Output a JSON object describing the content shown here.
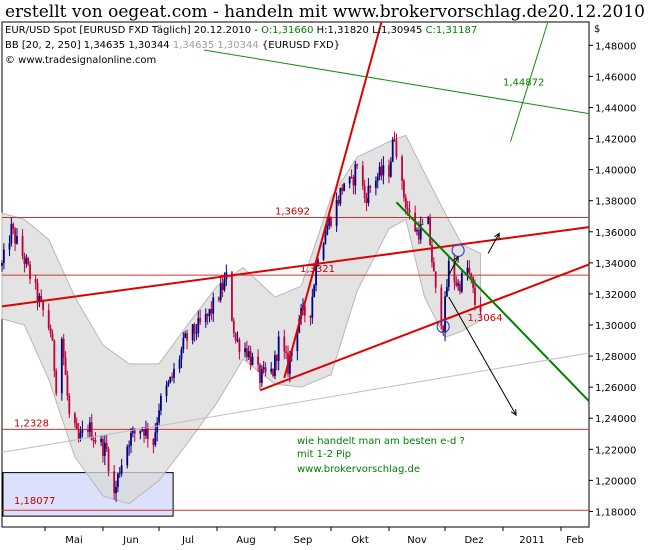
{
  "header": {
    "title": "erstellt von oegeat.com - handeln mit www.brokervorschlag.de",
    "date": "20.12.2010"
  },
  "legend": {
    "instrument": "EUR/USD Spot [EURUSD FXD  Täglich] 20.12.2010 -",
    "ohlc": [
      {
        "text": "O:1,31660",
        "color": "#008000"
      },
      {
        "text": " H:1,31820",
        "color": "#000000"
      },
      {
        "text": " L:1,30945",
        "color": "#000000"
      },
      {
        "text": " C:1,31187",
        "color": "#008000"
      }
    ],
    "bb_label": "BB [20, 2, 250]",
    "bb_values": [
      {
        "text": "1,34635",
        "color": "#000000"
      },
      {
        "text": " 1,30344",
        "color": "#000000"
      },
      {
        "text": " 1,34635",
        "color": "#a0a0a0"
      },
      {
        "text": " 1,30344",
        "color": "#a0a0a0"
      },
      {
        "text": " {EURUSD FXD}",
        "color": "#000000"
      }
    ],
    "copyright": "© www.tradesignalonline.com"
  },
  "colors": {
    "up": "#000080",
    "down": "#c0003c",
    "band": "#d9d9d9",
    "red_line": "#e00000",
    "green_line": "#008000",
    "thin_green": "#109010",
    "hline": "#d03030",
    "box": "#dde0fa"
  },
  "chart_data": {
    "type": "candlestick",
    "currency_label": "$",
    "y_ticks": [
      "1,18000",
      "1,20000",
      "1,22000",
      "1,24000",
      "1,26000",
      "1,28000",
      "1,30000",
      "1,32000",
      "1,34000",
      "1,36000",
      "1,38000",
      "1,40000",
      "1,42000",
      "1,44000",
      "1,46000",
      "1,48000"
    ],
    "ylim": [
      1.17,
      1.495
    ],
    "x_ticks": [
      "Mai",
      "Jun",
      "Jul",
      "Aug",
      "Sep",
      "Okt",
      "Nov",
      "Dez",
      "2011",
      "Feb"
    ],
    "x_tick_dates": [
      "2010-05-01",
      "2010-06-01",
      "2010-07-01",
      "2010-08-01",
      "2010-09-01",
      "2010-10-01",
      "2010-11-01",
      "2010-12-01",
      "2011-01-01",
      "2011-02-01"
    ],
    "x_range": [
      "2010-04-08",
      "2011-02-16"
    ],
    "last_date": "2010-12-20",
    "price_path": [
      [
        "2010-04-08",
        1.338
      ],
      [
        "2010-04-13",
        1.361
      ],
      [
        "2010-04-20",
        1.342
      ],
      [
        "2010-04-27",
        1.318
      ],
      [
        "2010-05-04",
        1.296
      ],
      [
        "2010-05-07",
        1.262
      ],
      [
        "2010-05-10",
        1.292
      ],
      [
        "2010-05-14",
        1.241
      ],
      [
        "2010-05-19",
        1.225
      ],
      [
        "2010-05-24",
        1.235
      ],
      [
        "2010-05-28",
        1.227
      ],
      [
        "2010-06-03",
        1.219
      ],
      [
        "2010-06-07",
        1.19
      ],
      [
        "2010-06-10",
        1.208
      ],
      [
        "2010-06-15",
        1.227
      ],
      [
        "2010-06-22",
        1.235
      ],
      [
        "2010-06-28",
        1.225
      ],
      [
        "2010-07-01",
        1.248
      ],
      [
        "2010-07-08",
        1.266
      ],
      [
        "2010-07-15",
        1.29
      ],
      [
        "2010-07-20",
        1.296
      ],
      [
        "2010-07-27",
        1.305
      ],
      [
        "2010-08-03",
        1.322
      ],
      [
        "2010-08-06",
        1.33
      ],
      [
        "2010-08-11",
        1.29
      ],
      [
        "2010-08-17",
        1.284
      ],
      [
        "2010-08-24",
        1.266
      ],
      [
        "2010-08-31",
        1.27
      ],
      [
        "2010-09-03",
        1.289
      ],
      [
        "2010-09-08",
        1.273
      ],
      [
        "2010-09-14",
        1.305
      ],
      [
        "2010-09-20",
        1.31
      ],
      [
        "2010-09-24",
        1.347
      ],
      [
        "2010-09-29",
        1.364
      ],
      [
        "2010-10-04",
        1.378
      ],
      [
        "2010-10-08",
        1.392
      ],
      [
        "2010-10-12",
        1.39
      ],
      [
        "2010-10-15",
        1.405
      ],
      [
        "2010-10-19",
        1.382
      ],
      [
        "2010-10-25",
        1.395
      ],
      [
        "2010-11-01",
        1.4
      ],
      [
        "2010-11-04",
        1.423
      ],
      [
        "2010-11-08",
        1.388
      ],
      [
        "2010-11-12",
        1.37
      ],
      [
        "2010-11-16",
        1.36
      ],
      [
        "2010-11-22",
        1.364
      ],
      [
        "2010-11-26",
        1.32
      ],
      [
        "2010-11-30",
        1.3
      ],
      [
        "2010-12-03",
        1.338
      ],
      [
        "2010-12-08",
        1.325
      ],
      [
        "2010-12-13",
        1.336
      ],
      [
        "2010-12-15",
        1.327
      ],
      [
        "2010-12-17",
        1.314
      ],
      [
        "2010-12-20",
        1.3119
      ]
    ],
    "band": {
      "upper": [
        [
          "2010-04-08",
          1.372
        ],
        [
          "2010-04-20",
          1.368
        ],
        [
          "2010-05-03",
          1.355
        ],
        [
          "2010-05-17",
          1.318
        ],
        [
          "2010-06-01",
          1.287
        ],
        [
          "2010-06-15",
          1.275
        ],
        [
          "2010-07-01",
          1.275
        ],
        [
          "2010-07-15",
          1.298
        ],
        [
          "2010-08-01",
          1.325
        ],
        [
          "2010-08-15",
          1.337
        ],
        [
          "2010-09-01",
          1.318
        ],
        [
          "2010-09-15",
          1.325
        ],
        [
          "2010-10-01",
          1.382
        ],
        [
          "2010-10-15",
          1.408
        ],
        [
          "2010-11-01",
          1.418
        ],
        [
          "2010-11-10",
          1.422
        ],
        [
          "2010-11-20",
          1.398
        ],
        [
          "2010-12-01",
          1.372
        ],
        [
          "2010-12-10",
          1.352
        ],
        [
          "2010-12-20",
          1.346
        ]
      ],
      "lower": [
        [
          "2010-04-08",
          1.304
        ],
        [
          "2010-04-20",
          1.3
        ],
        [
          "2010-05-03",
          1.265
        ],
        [
          "2010-05-17",
          1.215
        ],
        [
          "2010-06-01",
          1.19
        ],
        [
          "2010-06-15",
          1.185
        ],
        [
          "2010-07-01",
          1.2
        ],
        [
          "2010-07-15",
          1.222
        ],
        [
          "2010-08-01",
          1.25
        ],
        [
          "2010-08-15",
          1.278
        ],
        [
          "2010-09-01",
          1.262
        ],
        [
          "2010-09-15",
          1.26
        ],
        [
          "2010-10-01",
          1.268
        ],
        [
          "2010-10-15",
          1.322
        ],
        [
          "2010-11-01",
          1.362
        ],
        [
          "2010-11-10",
          1.368
        ],
        [
          "2010-11-20",
          1.318
        ],
        [
          "2010-12-01",
          1.292
        ],
        [
          "2010-12-10",
          1.296
        ],
        [
          "2010-12-20",
          1.303
        ]
      ]
    },
    "horizontal_lines": [
      {
        "level": 1.3692,
        "label": "1,3692"
      },
      {
        "level": 1.3321,
        "label": "1,3321"
      },
      {
        "level": 1.2328,
        "label": "1,2328"
      },
      {
        "level": 1.1808,
        "label": "1,18077"
      }
    ],
    "trend_lines": [
      {
        "name": "red-resistance",
        "style": "red",
        "from": [
          "2010-04-08",
          1.312
        ],
        "to": [
          "2011-02-16",
          1.363
        ]
      },
      {
        "name": "red-support",
        "style": "red",
        "from": [
          "2010-08-24",
          1.258
        ],
        "to": [
          "2011-02-16",
          1.339
        ]
      },
      {
        "name": "red-steep",
        "style": "red",
        "from": [
          "2010-09-06",
          1.266
        ],
        "to": [
          "2010-10-28",
          1.495
        ]
      },
      {
        "name": "green-down",
        "style": "green",
        "from": [
          "2010-11-05",
          1.379
        ],
        "to": [
          "2011-02-16",
          1.251
        ]
      },
      {
        "name": "green-long",
        "style": "thin_green",
        "from": [
          "2010-07-25",
          1.477
        ],
        "to": [
          "2011-02-16",
          1.436
        ]
      },
      {
        "name": "green-steep",
        "style": "thin_green",
        "from": [
          "2011-01-05",
          1.418
        ],
        "to": [
          "2011-01-25",
          1.495
        ]
      },
      {
        "name": "gray-long",
        "style": "gray",
        "from": [
          "2010-04-08",
          1.218
        ],
        "to": [
          "2011-02-16",
          1.282
        ]
      }
    ],
    "annotations": [
      {
        "text": "1,44872",
        "date": "2011-01-01",
        "level": 1.454,
        "color": "#008000"
      },
      {
        "text": "1,3064",
        "date": "2010-12-13",
        "level": 1.3025,
        "color": "#d00000"
      }
    ],
    "circles": [
      {
        "date": "2010-11-30",
        "level": 1.299
      },
      {
        "date": "2010-12-08",
        "level": 1.348
      }
    ],
    "arrows": [
      {
        "from": [
          "2010-12-03",
          1.332
        ],
        "to": [
          "2010-12-08",
          1.344
        ]
      },
      {
        "from": [
          "2010-12-24",
          1.346
        ],
        "to": [
          "2010-12-30",
          1.359
        ]
      },
      {
        "from": [
          "2010-12-03",
          1.318
        ],
        "to": [
          "2011-01-08",
          1.242
        ]
      }
    ],
    "box": {
      "from": [
        "2010-04-08",
        1.205
      ],
      "to": [
        "2010-07-08",
        1.177
      ]
    }
  },
  "notes": {
    "lines": [
      "wie handelt man am besten e-d ?",
      "mit 1-2 Pip",
      "www.brokervorschlag.de"
    ]
  }
}
